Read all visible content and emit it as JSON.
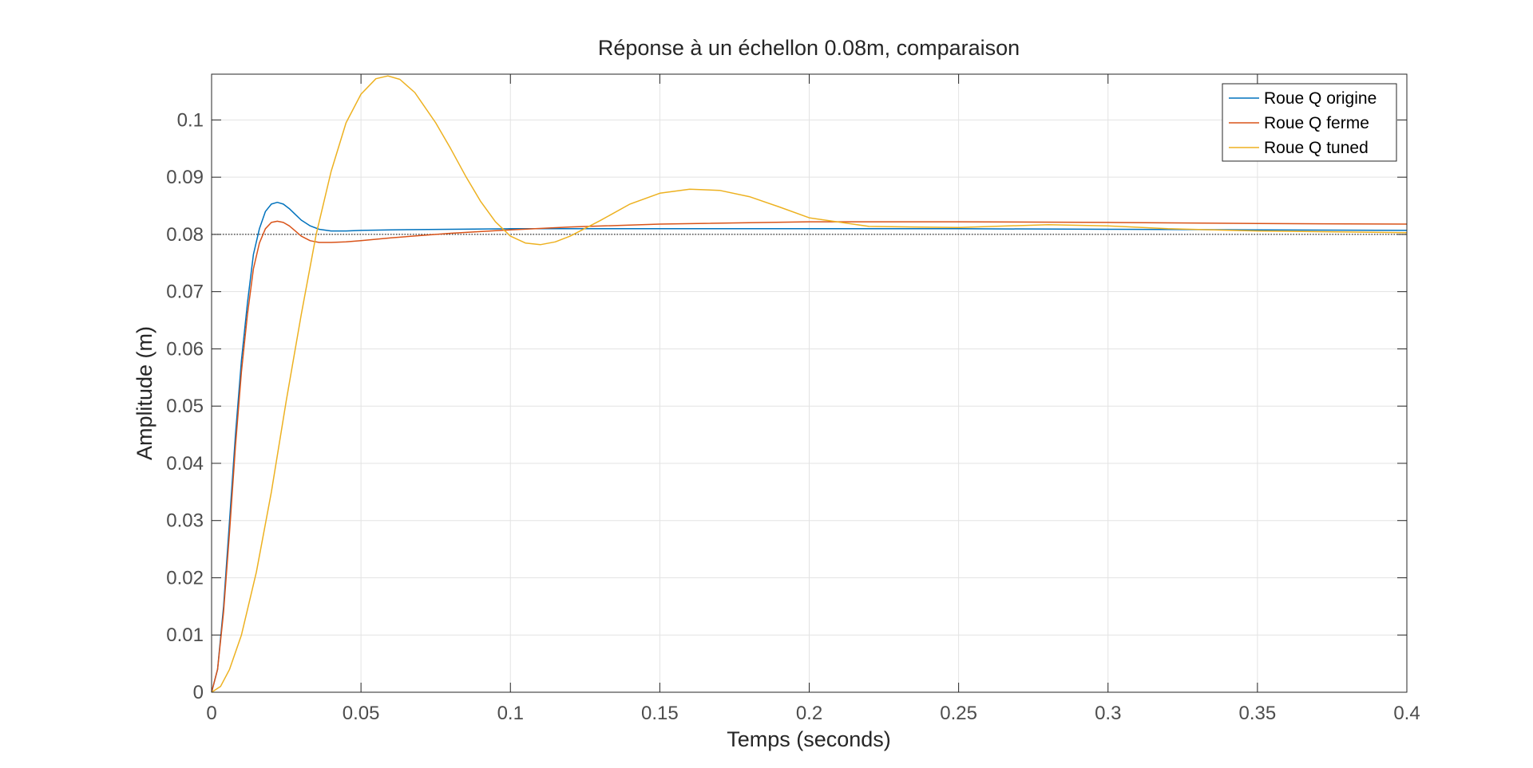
{
  "chart_data": {
    "type": "line",
    "title": "Réponse à un échellon 0.08m, comparaison",
    "xlabel": "Temps (seconds)",
    "ylabel": "Amplitude (m)",
    "xlim": [
      0,
      0.4
    ],
    "ylim": [
      0,
      0.108
    ],
    "grid": true,
    "legend_position": "top-right",
    "xticks": [
      0,
      0.05,
      0.1,
      0.15,
      0.2,
      0.25,
      0.3,
      0.35,
      0.4
    ],
    "xtick_labels": [
      "0",
      "0.05",
      "0.1",
      "0.15",
      "0.2",
      "0.25",
      "0.3",
      "0.35",
      "0.4"
    ],
    "yticks": [
      0,
      0.01,
      0.02,
      0.03,
      0.04,
      0.05,
      0.06,
      0.07,
      0.08,
      0.09,
      0.1
    ],
    "ytick_labels": [
      "0",
      "0.01",
      "0.02",
      "0.03",
      "0.04",
      "0.05",
      "0.06",
      "0.07",
      "0.08",
      "0.09",
      "0.1"
    ],
    "reference_line": {
      "y": 0.08,
      "style": "dotted",
      "color": "#000000"
    },
    "series": [
      {
        "name": "Roue Q origine",
        "color": "#0072BD",
        "x": [
          0,
          0.002,
          0.004,
          0.006,
          0.008,
          0.01,
          0.012,
          0.014,
          0.016,
          0.018,
          0.02,
          0.022,
          0.024,
          0.026,
          0.028,
          0.03,
          0.033,
          0.036,
          0.04,
          0.045,
          0.05,
          0.06,
          0.08,
          0.1,
          0.15,
          0.2,
          0.25,
          0.3,
          0.35,
          0.4
        ],
        "y": [
          0,
          0.004,
          0.015,
          0.03,
          0.045,
          0.058,
          0.068,
          0.0765,
          0.081,
          0.084,
          0.0853,
          0.0856,
          0.0853,
          0.0845,
          0.0835,
          0.0825,
          0.0815,
          0.0809,
          0.0806,
          0.0806,
          0.0807,
          0.0808,
          0.0809,
          0.081,
          0.081,
          0.081,
          0.081,
          0.0809,
          0.0808,
          0.0807
        ]
      },
      {
        "name": "Roue Q ferme",
        "color": "#D95319",
        "x": [
          0,
          0.002,
          0.004,
          0.006,
          0.008,
          0.01,
          0.012,
          0.014,
          0.016,
          0.018,
          0.02,
          0.022,
          0.024,
          0.026,
          0.028,
          0.03,
          0.033,
          0.036,
          0.04,
          0.045,
          0.05,
          0.06,
          0.08,
          0.1,
          0.12,
          0.15,
          0.2,
          0.25,
          0.3,
          0.35,
          0.4
        ],
        "y": [
          0,
          0.004,
          0.014,
          0.028,
          0.043,
          0.056,
          0.066,
          0.074,
          0.0785,
          0.081,
          0.0821,
          0.0823,
          0.0821,
          0.0815,
          0.0806,
          0.0797,
          0.0789,
          0.0786,
          0.0786,
          0.0787,
          0.0789,
          0.0794,
          0.0802,
          0.0808,
          0.0813,
          0.0818,
          0.0822,
          0.0822,
          0.0821,
          0.0819,
          0.0818
        ]
      },
      {
        "name": "Roue Q tuned",
        "color": "#EDB120",
        "x": [
          0,
          0.003,
          0.006,
          0.01,
          0.015,
          0.02,
          0.025,
          0.03,
          0.035,
          0.04,
          0.045,
          0.05,
          0.055,
          0.059,
          0.063,
          0.068,
          0.075,
          0.08,
          0.085,
          0.09,
          0.095,
          0.1,
          0.105,
          0.11,
          0.115,
          0.12,
          0.13,
          0.14,
          0.15,
          0.16,
          0.17,
          0.18,
          0.19,
          0.2,
          0.22,
          0.25,
          0.28,
          0.3,
          0.32,
          0.35,
          0.4
        ],
        "y": [
          0,
          0.001,
          0.004,
          0.01,
          0.021,
          0.035,
          0.051,
          0.066,
          0.08,
          0.091,
          0.0995,
          0.1045,
          0.1072,
          0.1077,
          0.1071,
          0.1048,
          0.0995,
          0.095,
          0.0902,
          0.0858,
          0.0822,
          0.0797,
          0.0785,
          0.0782,
          0.0787,
          0.0797,
          0.0824,
          0.0853,
          0.0872,
          0.0879,
          0.0877,
          0.0866,
          0.0848,
          0.0829,
          0.0814,
          0.0812,
          0.0817,
          0.0815,
          0.081,
          0.0806,
          0.0803
        ]
      }
    ]
  }
}
